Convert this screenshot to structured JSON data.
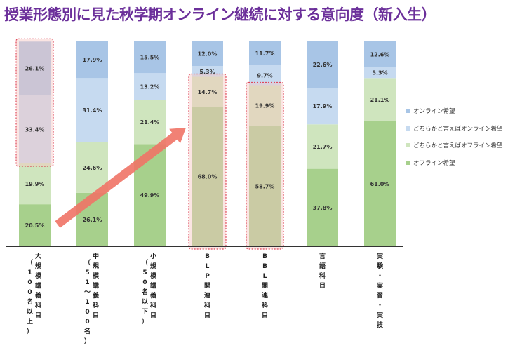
{
  "title": "授業形態別に見た秋学期オンライン継続に対する意向度（新入生）",
  "colors": {
    "online": "#a8c5e6",
    "rather_online": "#c6daf0",
    "rather_offline": "#cfe5be",
    "offline": "#a7d08c",
    "highlight_border": "#e0485a",
    "highlight_fill": "#f7c6c2",
    "arrow": "#ef7366",
    "title": "#6b2f9a"
  },
  "chart_data": {
    "type": "bar",
    "stacked": true,
    "normalized_to": 100,
    "categories": [
      "（100名以上）大規模講義科目",
      "（51～100名）中規模講義科目",
      "（50名以下）小規模講義科目",
      "BLP関連科目",
      "BBL関連科目",
      "言語科目",
      "実験・実習・実技"
    ],
    "category_labels_vertical": [
      [
        "（",
        "1",
        "0",
        "0",
        "名",
        "以",
        "上",
        "）"
      ],
      [
        "（",
        "5",
        "1",
        "～",
        "1",
        "0",
        "0",
        "名",
        "）"
      ],
      [
        "（",
        "5",
        "0",
        "名",
        "以",
        "下",
        "）"
      ],
      [],
      [],
      [],
      []
    ],
    "category_names_vertical": [
      [
        "大",
        "規",
        "模",
        "講",
        "義",
        "科",
        "目"
      ],
      [
        "中",
        "規",
        "模",
        "講",
        "義",
        "科",
        "目"
      ],
      [
        "小",
        "規",
        "模",
        "講",
        "義",
        "科",
        "目"
      ],
      [
        "B",
        "L",
        "P",
        "関",
        "連",
        "科",
        "目"
      ],
      [
        "B",
        "B",
        "L",
        "関",
        "連",
        "科",
        "目"
      ],
      [
        "言",
        "語",
        "科",
        "目"
      ],
      [
        "実",
        "験",
        "・",
        "実",
        "習",
        "・",
        "実",
        "技"
      ]
    ],
    "series": [
      {
        "name": "オフライン希望",
        "color_key": "offline",
        "values": [
          20.5,
          26.1,
          49.9,
          68.0,
          58.7,
          37.8,
          61.0
        ]
      },
      {
        "name": "どちらかと言えばオフライン希望",
        "color_key": "rather_offline",
        "values": [
          19.9,
          24.6,
          21.4,
          14.7,
          19.9,
          21.7,
          21.1
        ]
      },
      {
        "name": "どちらかと言えばオンライン希望",
        "color_key": "rather_online",
        "values": [
          33.4,
          31.4,
          13.2,
          5.3,
          9.7,
          17.9,
          5.3
        ]
      },
      {
        "name": "オンライン希望",
        "color_key": "online",
        "values": [
          26.1,
          17.9,
          15.5,
          12.0,
          11.7,
          22.6,
          12.6
        ]
      }
    ],
    "data_labels": [
      [
        "20.5%",
        "19.9%",
        "33.4%",
        "26.1%"
      ],
      [
        "26.1%",
        "24.6%",
        "31.4%",
        "17.9%"
      ],
      [
        "49.9%",
        "21.4%",
        "13.2%",
        "15.5%"
      ],
      [
        "68.0%",
        "14.7%",
        "5.3%",
        "12.0%"
      ],
      [
        "58.7%",
        "19.9%",
        "9.7%",
        "11.7%"
      ],
      [
        "37.8%",
        "21.7%",
        "17.9%",
        "22.6%"
      ],
      [
        "61.0%",
        "21.1%",
        "5.3%",
        "12.6%"
      ]
    ],
    "legend_order": [
      "オンライン希望",
      "どちらかと言えばオンライン希望",
      "どちらかと言えばオフライン希望",
      "オフライン希望"
    ],
    "legend_position": "right",
    "highlights": [
      {
        "category_index": 0,
        "segments": [
          2,
          3
        ]
      },
      {
        "category_index": 3,
        "segments": [
          0,
          1
        ]
      },
      {
        "category_index": 4,
        "segments": [
          0,
          1
        ]
      }
    ],
    "arrow": {
      "from_category": 0,
      "to_category": 3
    }
  }
}
